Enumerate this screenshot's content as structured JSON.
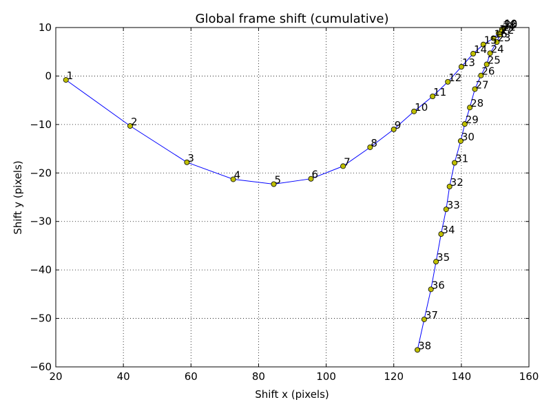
{
  "chart_data": {
    "type": "line",
    "title": "Global frame shift (cumulative)",
    "xlabel": "Shift x (pixels)",
    "ylabel": "Shift y (pixels)",
    "xlim": [
      20,
      160
    ],
    "ylim": [
      -60,
      10
    ],
    "xticks": [
      20,
      40,
      60,
      80,
      100,
      120,
      140,
      160
    ],
    "yticks": [
      -60,
      -50,
      -40,
      -30,
      -20,
      -10,
      0,
      10
    ],
    "grid": true,
    "line_color": "#0000ff",
    "marker_color": "#bfbf00",
    "series": [
      {
        "labels": [
          "1",
          "2",
          "3",
          "4",
          "5",
          "6",
          "7",
          "8",
          "9",
          "10",
          "11",
          "12",
          "13",
          "14",
          "15",
          "16",
          "17",
          "18",
          "19",
          "20",
          "21",
          "22",
          "23",
          "24",
          "25",
          "26",
          "27",
          "28",
          "29",
          "30",
          "31",
          "32",
          "33",
          "34",
          "35",
          "36",
          "37",
          "38"
        ],
        "x": [
          23.0,
          42.0,
          58.8,
          72.5,
          84.5,
          95.5,
          105.0,
          113.0,
          120.0,
          126.0,
          131.5,
          136.0,
          140.0,
          143.5,
          146.5,
          149.5,
          151.0,
          152.0,
          152.5,
          152.5,
          152.0,
          151.5,
          150.5,
          148.5,
          147.5,
          145.8,
          144.0,
          142.5,
          141.0,
          139.8,
          138.0,
          136.5,
          135.5,
          134.0,
          132.5,
          131.0,
          129.0,
          127.0
        ],
        "y": [
          -0.8,
          -10.3,
          -17.8,
          -21.3,
          -22.3,
          -21.2,
          -18.6,
          -14.7,
          -11.0,
          -7.3,
          -4.2,
          -1.2,
          1.9,
          4.6,
          6.5,
          7.8,
          8.8,
          9.6,
          9.9,
          9.8,
          9.2,
          8.6,
          7.0,
          4.7,
          2.4,
          0.1,
          -2.7,
          -6.5,
          -9.9,
          -13.4,
          -17.9,
          -22.8,
          -27.5,
          -32.6,
          -38.3,
          -44.0,
          -50.2,
          -56.5
        ]
      }
    ]
  }
}
